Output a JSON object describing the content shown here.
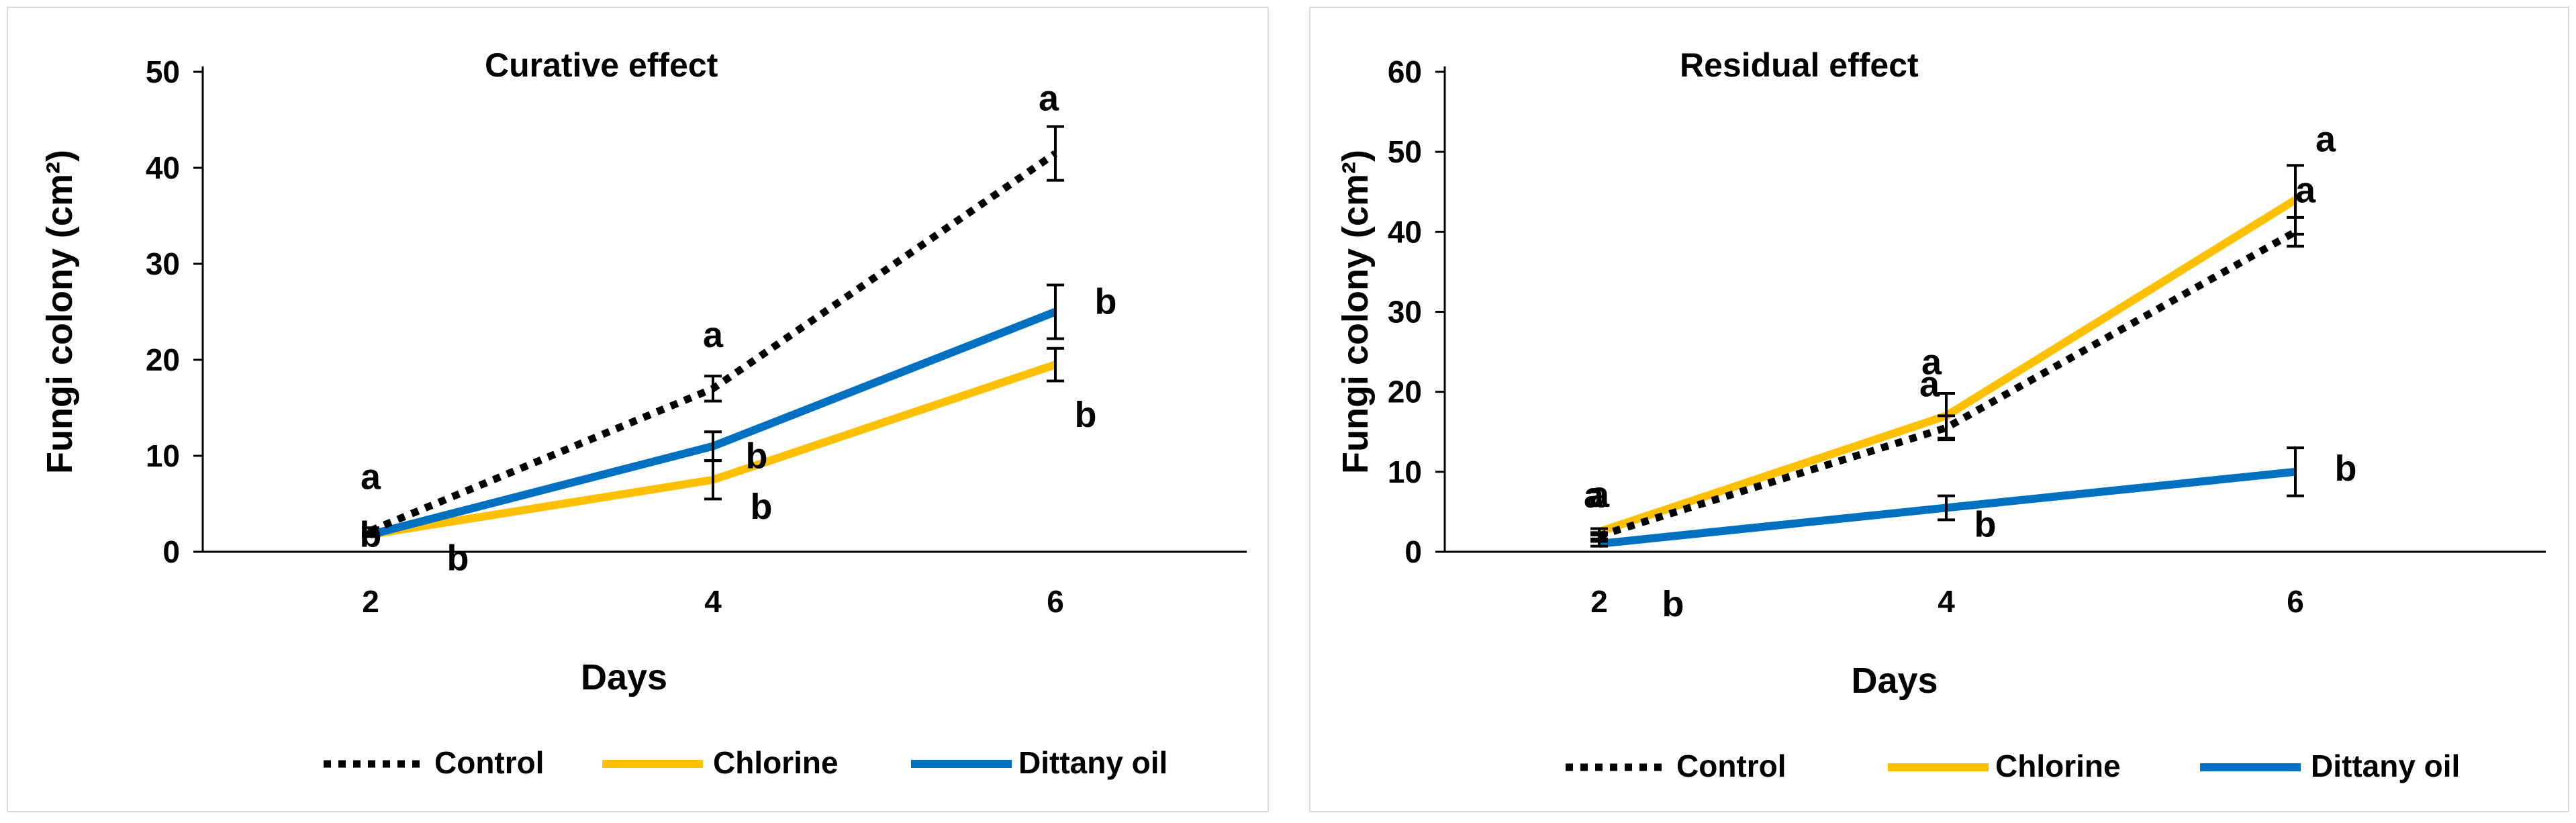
{
  "chart_data": [
    {
      "type": "line",
      "title": "Curative effect",
      "xlabel": "Days",
      "ylabel": "Fungi colony (cm²)",
      "x": [
        2,
        4,
        6
      ],
      "ylim": [
        0,
        50
      ],
      "yticks": [
        0,
        10,
        20,
        30,
        40,
        50
      ],
      "legend_position": "bottom",
      "grid": false,
      "series": [
        {
          "name": "Control",
          "style": "dotted",
          "color": "#000000",
          "values": [
            2.2,
            17,
            41.5
          ],
          "errors": [
            0.3,
            1.3,
            2.8
          ],
          "labels": [
            "a",
            "a",
            "a"
          ]
        },
        {
          "name": "Chlorine",
          "style": "solid",
          "color": "#FFC000",
          "values": [
            1.8,
            7.5,
            19.5
          ],
          "errors": [
            0.2,
            2.0,
            1.7
          ],
          "labels": [
            "b",
            "b",
            "b"
          ]
        },
        {
          "name": "Dittany oil",
          "style": "solid",
          "color": "#0070C0",
          "values": [
            1.8,
            11,
            25
          ],
          "errors": [
            0.2,
            1.5,
            2.8
          ],
          "labels": [
            "b",
            "b",
            "b"
          ]
        }
      ]
    },
    {
      "type": "line",
      "title": "Residual effect",
      "xlabel": "Days",
      "ylabel": "Fungi colony (cm²)",
      "x": [
        2,
        4,
        6
      ],
      "ylim": [
        0,
        60
      ],
      "yticks": [
        0,
        10,
        20,
        30,
        40,
        50,
        60
      ],
      "legend_position": "bottom",
      "grid": false,
      "series": [
        {
          "name": "Control",
          "style": "dotted",
          "color": "#000000",
          "values": [
            2,
            15.5,
            40
          ],
          "errors": [
            0.4,
            1.5,
            1.8
          ],
          "labels": [
            "a",
            "a",
            "a"
          ]
        },
        {
          "name": "Chlorine",
          "style": "solid",
          "color": "#FFC000",
          "values": [
            2.5,
            17,
            44
          ],
          "errors": [
            0.4,
            2.8,
            4.3
          ],
          "labels": [
            "a",
            "a",
            "a"
          ]
        },
        {
          "name": "Dittany oil",
          "style": "solid",
          "color": "#0070C0",
          "values": [
            1,
            5.5,
            10
          ],
          "errors": [
            0.3,
            1.5,
            3.0
          ],
          "labels": [
            "b",
            "b",
            "b"
          ]
        }
      ]
    }
  ]
}
